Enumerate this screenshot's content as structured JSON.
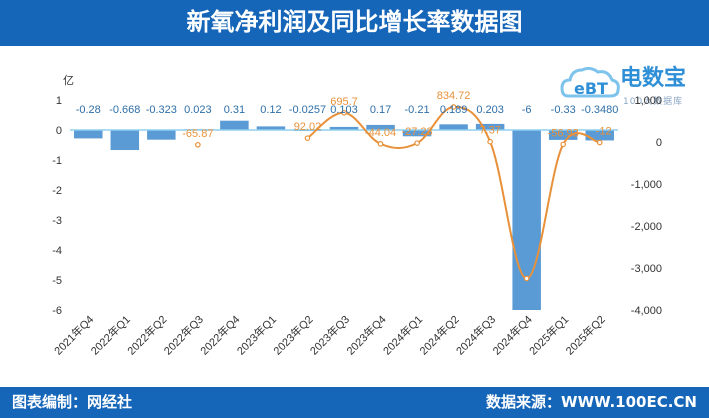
{
  "header": {
    "title": "新氧净利润及同比增长率数据图"
  },
  "footer": {
    "left": "图表编制：网经社",
    "right": "数据来源：WWW.100EC.CN"
  },
  "logo": {
    "name": "电数宝",
    "sub": "100大数据库",
    "icon": "cloud-logo-icon"
  },
  "colors": {
    "bar": "#5b9bd5",
    "line": "#e8913a",
    "header": "#1565b8",
    "zero_line": "#8fd0f0"
  },
  "chart_data": {
    "type": "bar",
    "categories": [
      "2021年Q4",
      "2022年Q1",
      "2022年Q2",
      "2022年Q3",
      "2022年Q4",
      "2023年Q1",
      "2023年Q2",
      "2023年Q3",
      "2023年Q4",
      "2024年Q1",
      "2024年Q2",
      "2024年Q3",
      "2024年Q4",
      "2025年Q1",
      "2025年Q2"
    ],
    "series": [
      {
        "type": "bar",
        "axis": "left",
        "values": [
          -0.28,
          -0.668,
          -0.323,
          0.023,
          0.31,
          0.12,
          -0.0257,
          0.103,
          0.17,
          -0.21,
          0.189,
          0.203,
          -6,
          -0.33,
          -0.348
        ],
        "labels": [
          "-0.28",
          "-0.668",
          "-0.323",
          "0.023",
          "0.31",
          "0.12",
          "-0.0257",
          "0.103",
          "0.17",
          "-0.21",
          "0.189",
          "0.203",
          "-6",
          "-0.33",
          "-0.3480"
        ]
      },
      {
        "type": "line",
        "axis": "right",
        "values": [
          null,
          null,
          null,
          -65.87,
          null,
          null,
          92.02,
          695.7,
          -44.04,
          -27.23,
          834.72,
          7.37,
          -3250,
          -56.93,
          -12
        ],
        "labels": [
          "",
          "",
          "",
          "-65.87",
          "",
          "",
          "92.02",
          "695.7",
          "-44.04",
          "-27.23",
          "834.72",
          "7.37",
          "",
          "-56.93",
          "-12"
        ]
      }
    ],
    "left_axis": {
      "unit": "亿",
      "ylim": [
        -6,
        1
      ],
      "ticks": [
        "1",
        "0",
        "-1",
        "-2",
        "-3",
        "-4",
        "-5",
        "-6"
      ]
    },
    "right_axis": {
      "ylim": [
        -4000,
        1000
      ],
      "ticks": [
        "1,000",
        "0",
        "-1,000",
        "-2,000",
        "-3,000",
        "-4,000"
      ]
    },
    "grid": false,
    "legend": "none"
  }
}
